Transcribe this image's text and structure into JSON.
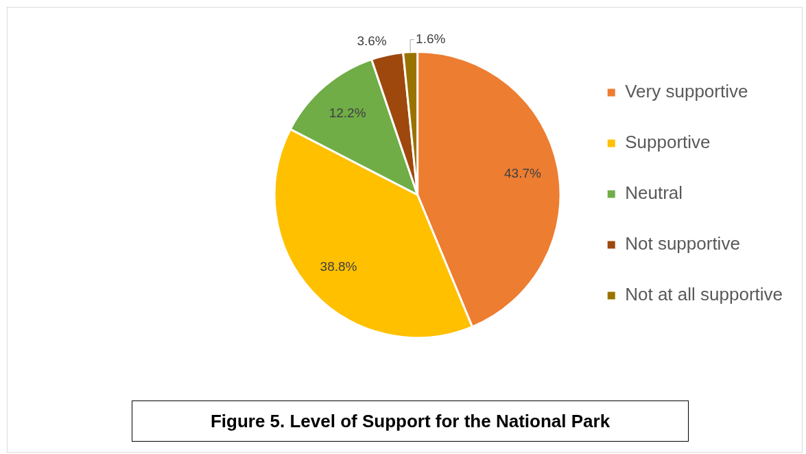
{
  "chart_data": {
    "type": "pie",
    "title": "Figure 5. Level of Support for the National Park",
    "categories": [
      "Very supportive",
      "Supportive",
      "Neutral",
      "Not supportive",
      "Not at all supportive"
    ],
    "values": [
      43.7,
      38.8,
      12.2,
      3.6,
      1.6
    ],
    "colors": [
      "#ed7d31",
      "#ffc000",
      "#70ad47",
      "#9e480e",
      "#997300"
    ],
    "value_labels": [
      "43.7%",
      "38.8%",
      "12.2%",
      "3.6%",
      "1.6%"
    ],
    "legend": "right"
  }
}
